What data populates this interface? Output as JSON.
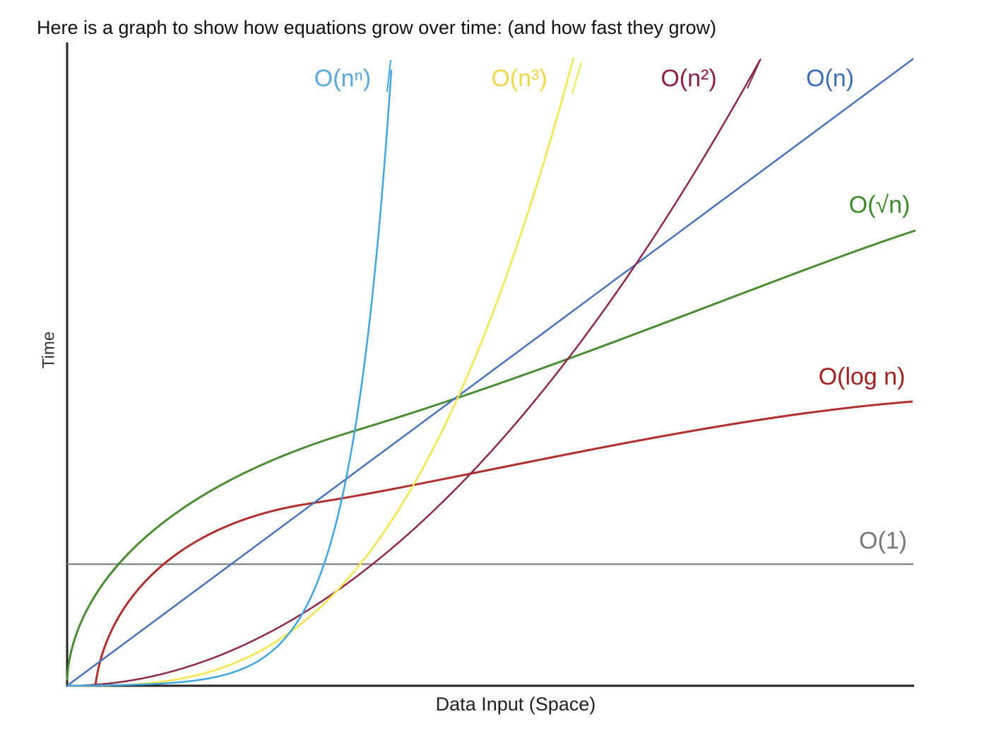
{
  "header": {
    "title": "Here is a graph to show how equations grow over time: (and how fast they grow)"
  },
  "axes": {
    "x_label": "Data Input (Space)",
    "y_label": "Time"
  },
  "curves": [
    {
      "label": "O(nⁿ)"
    },
    {
      "label": "O(n³)"
    },
    {
      "label": "O(n²)"
    },
    {
      "label": "O(n)"
    },
    {
      "label": "O(√n)"
    },
    {
      "label": "O(log n)"
    },
    {
      "label": "O(1)"
    }
  ]
}
